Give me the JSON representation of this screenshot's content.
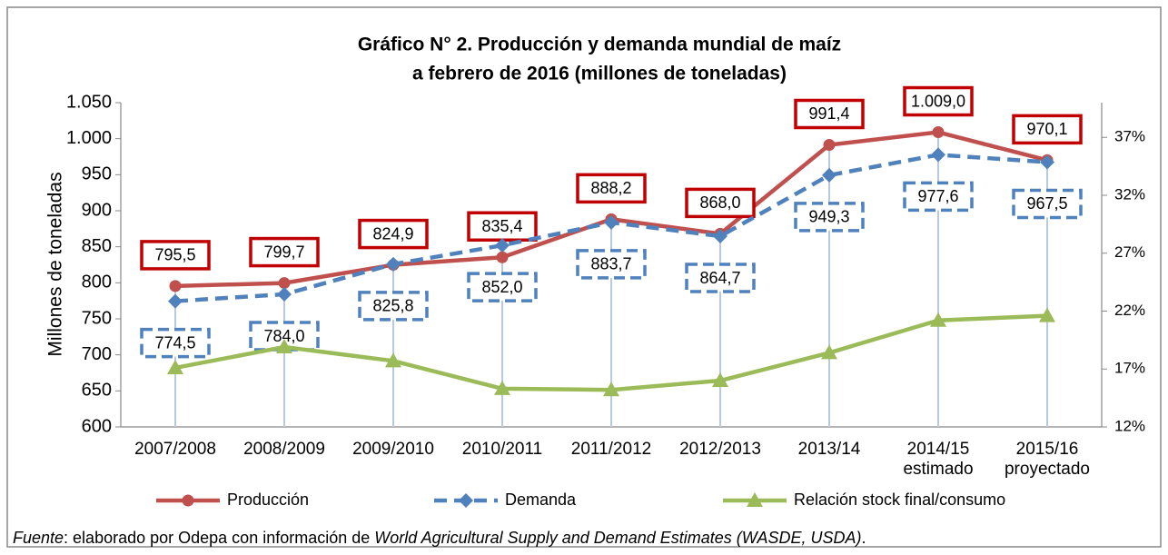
{
  "chart_data": {
    "type": "line",
    "title": "Gráfico N° 2. Producción y demanda mundial de maíz",
    "subtitle": "a febrero de 2016  (millones de toneladas)",
    "ylabel": "Millones de toneladas",
    "categories": [
      "2007/2008",
      "2008/2009",
      "2009/2010",
      "2010/2011",
      "2011/2012",
      "2012/2013",
      "2013/14",
      "2014/15 estimado",
      "2015/16 proyectado"
    ],
    "series": [
      {
        "name": "Producción",
        "color": "#c0504d",
        "values": [
          795.5,
          799.7,
          824.9,
          835.4,
          888.2,
          868.0,
          991.4,
          1009.0,
          970.1
        ],
        "value_labels": [
          "795,5",
          "799,7",
          "824,9",
          "835,4",
          "888,2",
          "868,0",
          "991,4",
          "1.009,0",
          "970,1"
        ]
      },
      {
        "name": "Demanda",
        "color": "#4f81bd",
        "dashed": true,
        "values": [
          774.5,
          784.0,
          825.8,
          852.0,
          883.7,
          864.7,
          949.3,
          977.6,
          967.5
        ],
        "value_labels": [
          "774,5",
          "784,0",
          "825,8",
          "852,0",
          "883,7",
          "864,7",
          "949,3",
          "977,6",
          "967,5"
        ]
      },
      {
        "name": "Relación stock final/consumo",
        "color": "#9bbb59",
        "axis": "y2",
        "values": [
          17.1,
          18.9,
          17.7,
          15.3,
          15.2,
          16.0,
          18.4,
          21.2,
          21.6
        ]
      }
    ],
    "ylim": [
      600,
      1050
    ],
    "yticks": [
      600,
      650,
      700,
      750,
      800,
      850,
      900,
      950,
      {
        "value": 1000,
        "label": "1.000"
      },
      {
        "value": 1050,
        "label": "1.050"
      }
    ],
    "y2lim": [
      12,
      40
    ],
    "y2ticks": [
      {
        "value": 12,
        "label": "12%"
      },
      {
        "value": 17,
        "label": "17%"
      },
      {
        "value": 22,
        "label": "22%"
      },
      {
        "value": 27,
        "label": "27%"
      },
      {
        "value": 32,
        "label": "32%"
      },
      {
        "value": 37,
        "label": "37%"
      }
    ],
    "legend": "bottom"
  },
  "footer": {
    "label": "Fuente",
    "text": ": elaborado por Odepa con información de ",
    "source": "World Agricultural Supply and Demand Estimates  (WASDE, USDA)",
    "end": "."
  }
}
